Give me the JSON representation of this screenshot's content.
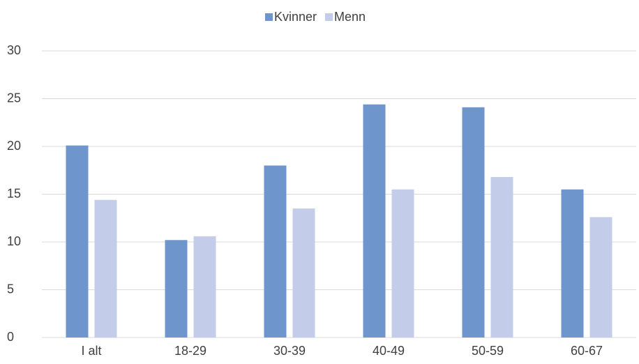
{
  "chart_data": {
    "type": "bar",
    "categories": [
      "I alt",
      "18-29",
      "30-39",
      "40-49",
      "50-59",
      "60-67"
    ],
    "series": [
      {
        "name": "Kvinner",
        "color": "#6f96cc",
        "values": [
          20.1,
          10.2,
          18.0,
          24.4,
          24.1,
          15.5
        ]
      },
      {
        "name": "Menn",
        "color": "#c3cce9",
        "values": [
          14.4,
          10.6,
          13.5,
          15.5,
          16.8,
          12.6
        ]
      }
    ],
    "ylim": [
      0,
      30
    ],
    "yticks": [
      0,
      5,
      10,
      15,
      20,
      25,
      30
    ],
    "grid": true,
    "legend": "top"
  }
}
